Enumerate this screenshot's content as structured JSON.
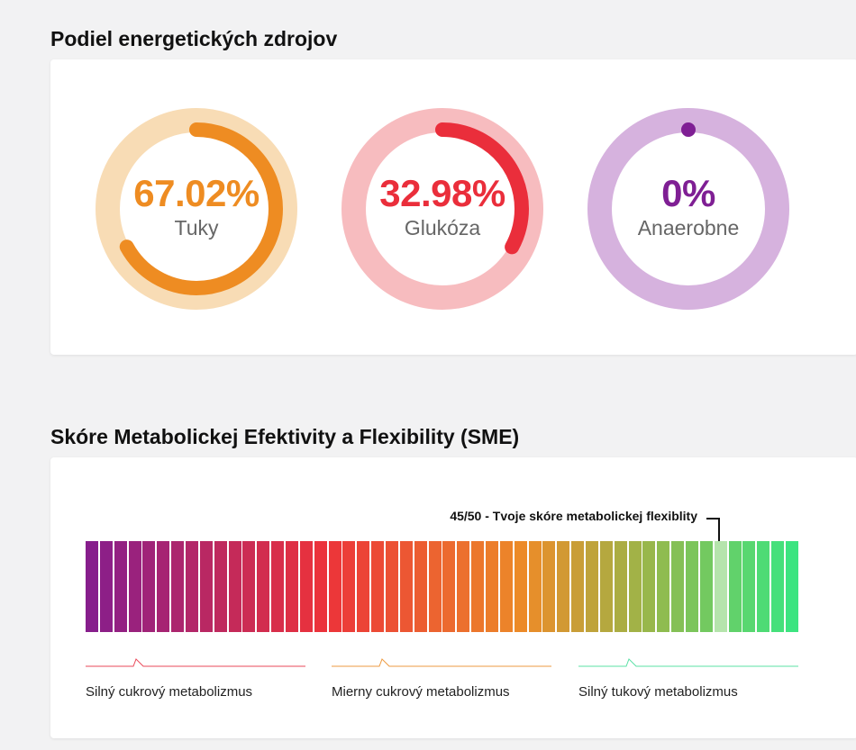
{
  "energy": {
    "title": "Podiel energetických zdrojov",
    "donuts": [
      {
        "value": "67.02%",
        "label": "Tuky",
        "fraction": 0.6702,
        "color": "#ee8c22",
        "track": "#f8dcb5"
      },
      {
        "value": "32.98%",
        "label": "Glukóza",
        "fraction": 0.3298,
        "color": "#ea2e3b",
        "track": "#f7bcbf"
      },
      {
        "value": "0%",
        "label": "Anaerobne",
        "fraction": 0,
        "color": "#7f1f94",
        "track": "#d6b2de"
      }
    ]
  },
  "sme": {
    "title": "Skóre Metabolickej Efektivity a Flexibility (SME)",
    "score": 45,
    "max": 50,
    "score_label": "45/50 - Tvoje skóre metabolickej flexiblity",
    "highlight_color": "#b5e4ac",
    "legend": [
      {
        "label": "Silný cukrový metabolizmus",
        "color": "#ea4a5a"
      },
      {
        "label": "Mierny cukrový metabolizmus",
        "color": "#ee9a40"
      },
      {
        "label": "Silný tukový metabolizmus",
        "color": "#5be0a6"
      }
    ]
  }
}
